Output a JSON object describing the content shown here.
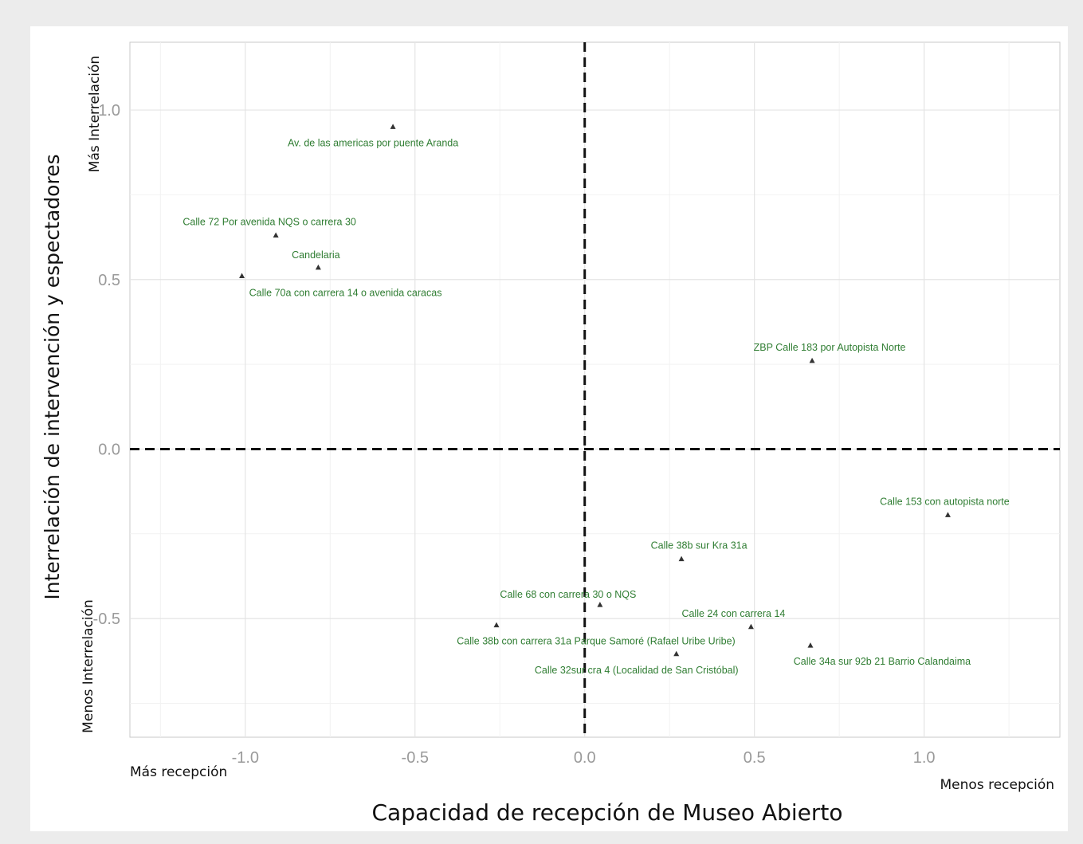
{
  "chart_data": {
    "type": "scatter",
    "title": "",
    "xlabel": "Capacidad de recepción de Museo Abierto",
    "ylabel": "Interrelación de intervención y espectadores",
    "xlim": [
      -1.34,
      1.4
    ],
    "ylim": [
      -0.85,
      1.2
    ],
    "xticks": [
      "-1.0",
      "-0.5",
      "0.0",
      "0.5",
      "1.0"
    ],
    "yticks": [
      "-0.5",
      "0.0",
      "0.5",
      "1.0"
    ],
    "grid": true,
    "reference_lines": {
      "x": 0.0,
      "y": 0.0,
      "style": "dashed"
    },
    "corner_labels": {
      "y_top": "Más Interrelación",
      "y_bottom": "Menos Interrelación",
      "x_left": "Más recepción",
      "x_right": "Menos recepción"
    },
    "marker_color": "#333333",
    "label_color": "#2f7d32",
    "points": [
      {
        "label": "Av. de las americas por puente Aranda",
        "x": -0.565,
        "y": 0.95
      },
      {
        "label": "Calle 72 Por avenida NQS o carrera 30",
        "x": -0.91,
        "y": 0.63
      },
      {
        "label": "Candelaria",
        "x": -0.785,
        "y": 0.535
      },
      {
        "label": "Calle 70a con carrera 14 o avenida caracas",
        "x": -1.01,
        "y": 0.51
      },
      {
        "label": "ZBP Calle 183 por Autopista Norte",
        "x": 0.67,
        "y": 0.26
      },
      {
        "label": "Calle 153 con autopista norte",
        "x": 1.07,
        "y": -0.195
      },
      {
        "label": "Calle 38b sur Kra 31a",
        "x": 0.285,
        "y": -0.325
      },
      {
        "label": "Calle 68 con carrera 30 o NQS",
        "x": 0.045,
        "y": -0.46
      },
      {
        "label": "Calle 38b con carrera 31a Parque Samoré (Rafael Uribe Uribe)",
        "x": -0.26,
        "y": -0.52
      },
      {
        "label": "Calle 24 con carrera 14",
        "x": 0.49,
        "y": -0.525
      },
      {
        "label": "Calle 32sur cra 4 (Localidad de San Cristóbal)",
        "x": 0.27,
        "y": -0.605
      },
      {
        "label": "Calle 34a sur 92b 21 Barrio Calandaima",
        "x": 0.665,
        "y": -0.58
      }
    ]
  }
}
